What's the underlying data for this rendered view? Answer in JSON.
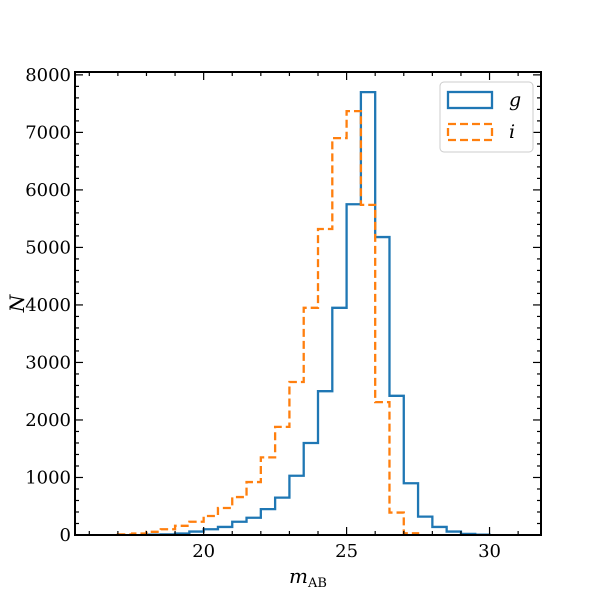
{
  "chart_data": {
    "type": "histogram",
    "xlabel": {
      "main": "m",
      "sub": "AB"
    },
    "ylabel": "N",
    "xlim": [
      15.5,
      31.8
    ],
    "ylim": [
      0,
      8050
    ],
    "xticks": [
      20,
      25,
      30
    ],
    "yticks": [
      0,
      1000,
      2000,
      3000,
      4000,
      5000,
      6000,
      7000,
      8000
    ],
    "xminor_step": 1,
    "yminor_step": 200,
    "legend": {
      "placement": "top-right"
    },
    "series": [
      {
        "name": "g",
        "style": "solid",
        "color": "#1f77b4",
        "bins": [
          {
            "x0": 18.0,
            "x1": 18.5,
            "y": 5
          },
          {
            "x0": 18.5,
            "x1": 19.0,
            "y": 10
          },
          {
            "x0": 19.0,
            "x1": 19.5,
            "y": 25
          },
          {
            "x0": 19.5,
            "x1": 20.0,
            "y": 60
          },
          {
            "x0": 20.0,
            "x1": 20.5,
            "y": 100
          },
          {
            "x0": 20.5,
            "x1": 21.0,
            "y": 140
          },
          {
            "x0": 21.0,
            "x1": 21.5,
            "y": 230
          },
          {
            "x0": 21.5,
            "x1": 22.0,
            "y": 300
          },
          {
            "x0": 22.0,
            "x1": 22.5,
            "y": 450
          },
          {
            "x0": 22.5,
            "x1": 23.0,
            "y": 650
          },
          {
            "x0": 23.0,
            "x1": 23.5,
            "y": 1030
          },
          {
            "x0": 23.5,
            "x1": 24.0,
            "y": 1600
          },
          {
            "x0": 24.0,
            "x1": 24.5,
            "y": 2500
          },
          {
            "x0": 24.5,
            "x1": 25.0,
            "y": 3950
          },
          {
            "x0": 25.0,
            "x1": 25.5,
            "y": 5750
          },
          {
            "x0": 25.5,
            "x1": 26.0,
            "y": 7700
          },
          {
            "x0": 26.0,
            "x1": 26.5,
            "y": 5180
          },
          {
            "x0": 26.5,
            "x1": 27.0,
            "y": 2420
          },
          {
            "x0": 27.0,
            "x1": 27.5,
            "y": 900
          },
          {
            "x0": 27.5,
            "x1": 28.0,
            "y": 320
          },
          {
            "x0": 28.0,
            "x1": 28.5,
            "y": 140
          },
          {
            "x0": 28.5,
            "x1": 29.0,
            "y": 60
          },
          {
            "x0": 29.0,
            "x1": 29.5,
            "y": 20
          },
          {
            "x0": 29.5,
            "x1": 30.0,
            "y": 5
          }
        ]
      },
      {
        "name": "i",
        "style": "dashed",
        "color": "#ff7f0e",
        "bins": [
          {
            "x0": 17.0,
            "x1": 17.5,
            "y": 10
          },
          {
            "x0": 17.5,
            "x1": 18.0,
            "y": 25
          },
          {
            "x0": 18.0,
            "x1": 18.5,
            "y": 55
          },
          {
            "x0": 18.5,
            "x1": 19.0,
            "y": 100
          },
          {
            "x0": 19.0,
            "x1": 19.5,
            "y": 160
          },
          {
            "x0": 19.5,
            "x1": 20.0,
            "y": 230
          },
          {
            "x0": 20.0,
            "x1": 20.5,
            "y": 330
          },
          {
            "x0": 20.5,
            "x1": 21.0,
            "y": 470
          },
          {
            "x0": 21.0,
            "x1": 21.5,
            "y": 660
          },
          {
            "x0": 21.5,
            "x1": 22.0,
            "y": 920
          },
          {
            "x0": 22.0,
            "x1": 22.5,
            "y": 1350
          },
          {
            "x0": 22.5,
            "x1": 23.0,
            "y": 1880
          },
          {
            "x0": 23.0,
            "x1": 23.5,
            "y": 2660
          },
          {
            "x0": 23.5,
            "x1": 24.0,
            "y": 3950
          },
          {
            "x0": 24.0,
            "x1": 24.5,
            "y": 5320
          },
          {
            "x0": 24.5,
            "x1": 25.0,
            "y": 6900
          },
          {
            "x0": 25.0,
            "x1": 25.5,
            "y": 7370
          },
          {
            "x0": 25.5,
            "x1": 26.0,
            "y": 5740
          },
          {
            "x0": 26.0,
            "x1": 26.5,
            "y": 2310
          },
          {
            "x0": 26.5,
            "x1": 27.0,
            "y": 390
          },
          {
            "x0": 27.0,
            "x1": 27.5,
            "y": 30
          }
        ]
      }
    ]
  }
}
